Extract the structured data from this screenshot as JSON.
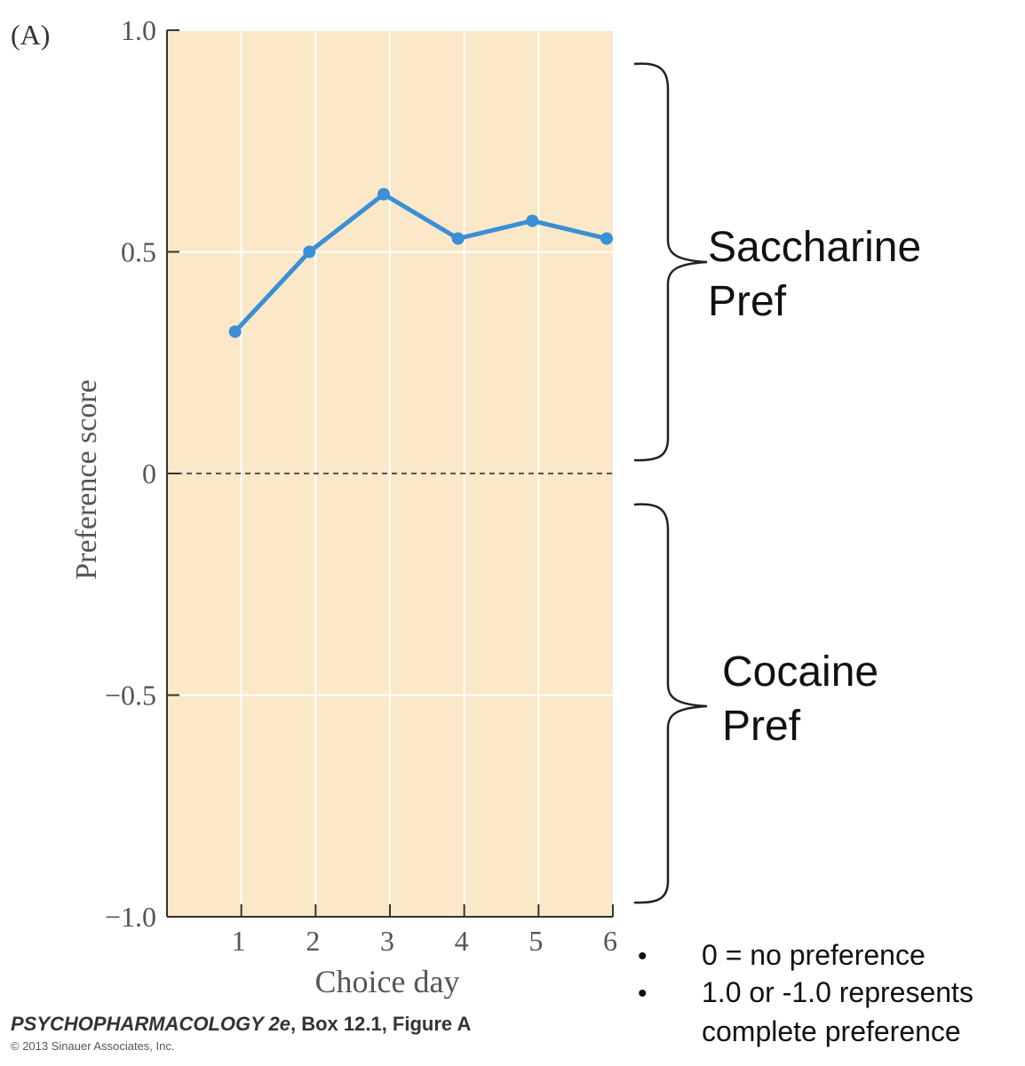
{
  "panel_label": "(A)",
  "chart_data": {
    "type": "line",
    "x": [
      1,
      2,
      3,
      4,
      5,
      6
    ],
    "y": [
      0.32,
      0.5,
      0.63,
      0.53,
      0.57,
      0.53
    ],
    "xlabel": "Choice day",
    "ylabel": "Preference score",
    "xlim": [
      0,
      6
    ],
    "ylim": [
      -1.0,
      1.0
    ],
    "xticks": [
      "1",
      "2",
      "3",
      "4",
      "5",
      "6"
    ],
    "yticks": [
      "1.0",
      "0.5",
      "0",
      "−0.5",
      "−1.0"
    ],
    "ytick_values": [
      1.0,
      0.5,
      0,
      -0.5,
      -1.0
    ],
    "grid": true,
    "reference_line": 0,
    "colors": {
      "background": "#fae8c8",
      "line": "#3a8fd6",
      "grid": "#ffffff",
      "axis": "#333333"
    }
  },
  "annotations": {
    "upper": [
      "Saccharine",
      "Pref"
    ],
    "lower": [
      "Cocaine",
      "Pref"
    ]
  },
  "notes": [
    "0 = no preference",
    "1.0 or -1.0 represents",
    "complete preference"
  ],
  "bullets": [
    "•",
    "•"
  ],
  "credit": {
    "title": "PSYCHOPHARMACOLOGY 2e",
    "rest": ", Box 12.1, Figure A",
    "copyright": "© 2013 Sinauer Associates, Inc."
  }
}
